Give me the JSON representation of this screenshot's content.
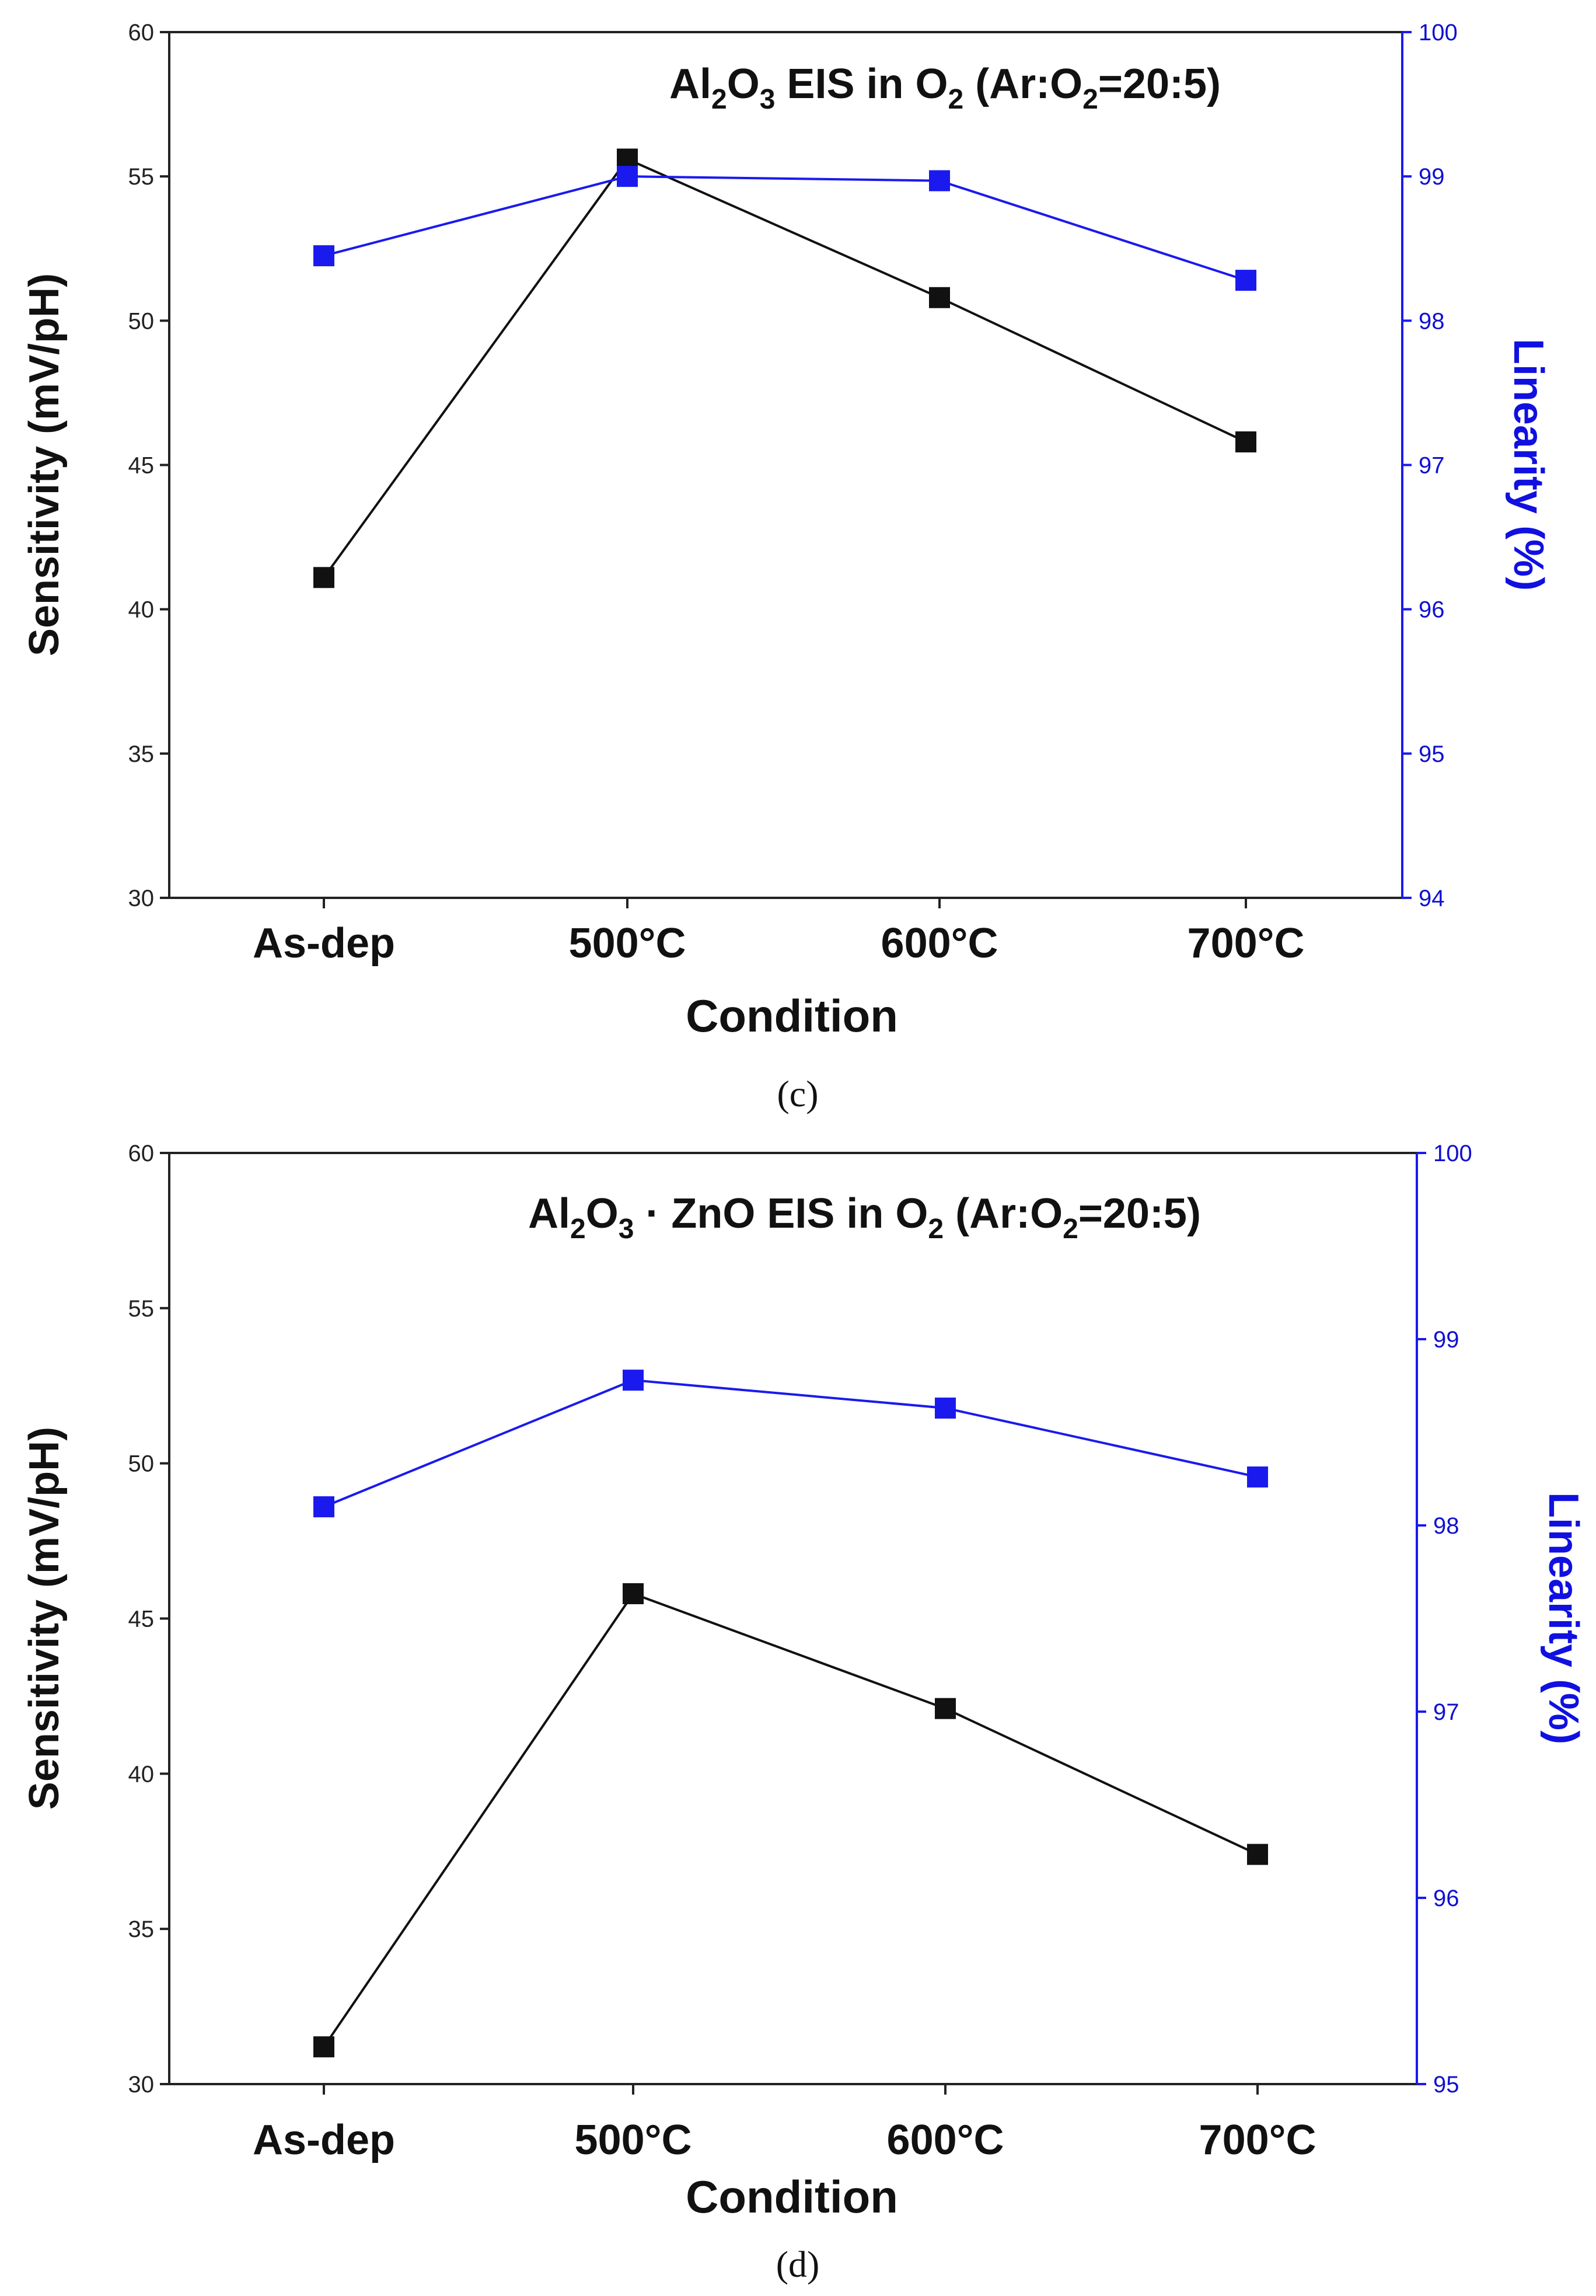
{
  "colors": {
    "sensitivity": "#111111",
    "linearity": "#1a1aee"
  },
  "chart_data": [
    {
      "type": "line",
      "panel": "c",
      "caption": "(c)",
      "title": "Al2O3 EIS in O2 (Ar:O2=20:5)",
      "xlabel": "Condition",
      "ylabel": "Sensitivity (mV/pH)",
      "y2label": "Linearity (%)",
      "categories": [
        "As-dep",
        "500°C",
        "600°C",
        "700°C"
      ],
      "ylim": [
        30,
        60
      ],
      "y2lim": [
        94,
        100
      ],
      "yticks": [
        30,
        35,
        40,
        45,
        50,
        55,
        60
      ],
      "y2ticks": [
        94,
        95,
        96,
        97,
        98,
        99,
        100
      ],
      "series": [
        {
          "name": "Sensitivity",
          "axis": "left",
          "values": [
            41.1,
            55.6,
            50.8,
            45.8
          ]
        },
        {
          "name": "Linearity",
          "axis": "right",
          "values": [
            98.45,
            99.0,
            98.97,
            98.28
          ]
        }
      ]
    },
    {
      "type": "line",
      "panel": "d",
      "caption": "(d)",
      "title": "Al2O3 · ZnO EIS in O2 (Ar:O2=20:5)",
      "xlabel": "Condition",
      "ylabel": "Sensitivity (mV/pH)",
      "y2label": "Linearity (%)",
      "categories": [
        "As-dep",
        "500°C",
        "600°C",
        "700°C"
      ],
      "ylim": [
        30,
        60
      ],
      "y2lim": [
        95,
        100
      ],
      "yticks": [
        30,
        35,
        40,
        45,
        50,
        55,
        60
      ],
      "y2ticks": [
        95,
        96,
        97,
        98,
        99,
        100
      ],
      "series": [
        {
          "name": "Sensitivity",
          "axis": "left",
          "values": [
            31.2,
            45.8,
            42.1,
            37.4
          ]
        },
        {
          "name": "Linearity",
          "axis": "right",
          "values": [
            98.1,
            98.78,
            98.63,
            98.26
          ]
        }
      ]
    }
  ]
}
